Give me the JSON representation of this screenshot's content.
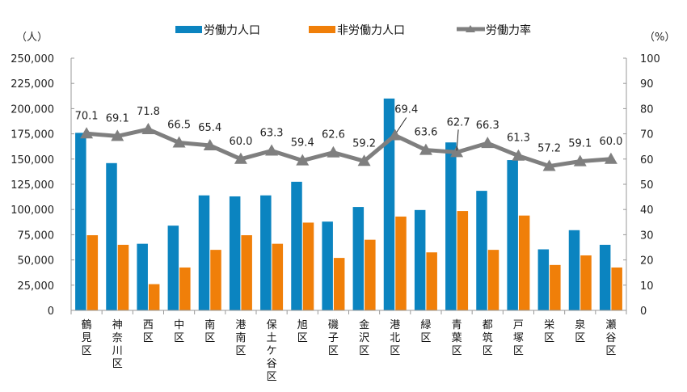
{
  "chart_data": {
    "type": "bar",
    "title": "",
    "xlabel": "",
    "ylabel": "（人）",
    "y2label": "（%）",
    "ylim": [
      0,
      250000
    ],
    "y2lim": [
      0,
      100
    ],
    "yticks": [
      "0",
      "25,000",
      "50,000",
      "75,000",
      "100,000",
      "125,000",
      "150,000",
      "175,000",
      "200,000",
      "225,000",
      "250,000"
    ],
    "y2ticks": [
      "0",
      "10",
      "20",
      "30",
      "40",
      "50",
      "60",
      "70",
      "80",
      "90",
      "100"
    ],
    "grid": false,
    "legend_position": "top",
    "categories": [
      "鶴見区",
      "神奈川区",
      "西区",
      "中区",
      "南区",
      "港南区",
      "保土ケ谷区",
      "旭区",
      "磯子区",
      "金沢区",
      "港北区",
      "緑区",
      "青葉区",
      "都筑区",
      "戸塚区",
      "栄区",
      "泉区",
      "瀬谷区"
    ],
    "series": [
      {
        "name": "労働力人口",
        "type": "bar",
        "axis": "left",
        "color": "#0B84C0",
        "values": [
          176000,
          146000,
          66000,
          84000,
          114000,
          113000,
          114000,
          127500,
          88000,
          102500,
          210000,
          99500,
          166500,
          118500,
          149000,
          60500,
          79500,
          65000
        ]
      },
      {
        "name": "非労働力人口",
        "type": "bar",
        "axis": "left",
        "color": "#F07F09",
        "values": [
          74500,
          65000,
          26000,
          42500,
          60000,
          74500,
          66000,
          87000,
          52000,
          70000,
          93000,
          57500,
          98500,
          60000,
          94000,
          45000,
          54500,
          42500
        ]
      },
      {
        "name": "労働力率",
        "type": "line",
        "axis": "right",
        "color": "#7F7F7F",
        "marker": "triangle",
        "values": [
          70.1,
          69.1,
          71.8,
          66.5,
          65.4,
          60.0,
          63.3,
          59.4,
          62.6,
          59.2,
          69.4,
          63.6,
          62.7,
          66.3,
          61.3,
          57.2,
          59.1,
          60.0
        ],
        "labels": [
          "70.1",
          "69.1",
          "71.8",
          "66.5",
          "65.4",
          "60.0",
          "63.3",
          "59.4",
          "62.6",
          "59.2",
          "69.4",
          "63.6",
          "62.7",
          "66.3",
          "61.3",
          "57.2",
          "59.1",
          "60.0"
        ]
      }
    ]
  }
}
